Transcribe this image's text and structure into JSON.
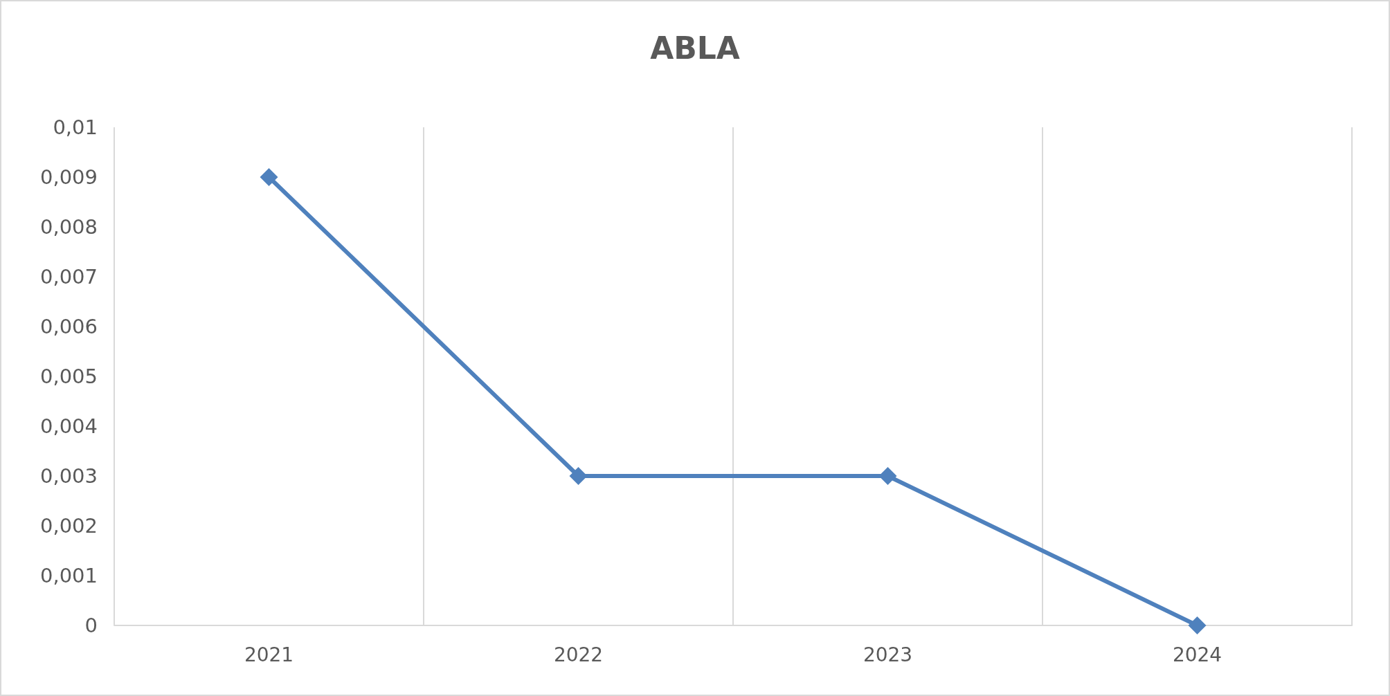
{
  "chart_data": {
    "type": "line",
    "title": "ABLA",
    "categories": [
      "2021",
      "2022",
      "2023",
      "2024"
    ],
    "series": [
      {
        "color": "#4f81bd",
        "values": [
          0.009,
          0.003,
          0.003,
          0
        ]
      }
    ],
    "ylim": [
      0,
      0.01
    ],
    "yticks": [
      {
        "value": 0,
        "label": "0"
      },
      {
        "value": 0.001,
        "label": "0,001"
      },
      {
        "value": 0.002,
        "label": "0,002"
      },
      {
        "value": 0.003,
        "label": "0,003"
      },
      {
        "value": 0.004,
        "label": "0,004"
      },
      {
        "value": 0.005,
        "label": "0,005"
      },
      {
        "value": 0.006,
        "label": "0,006"
      },
      {
        "value": 0.007,
        "label": "0,007"
      },
      {
        "value": 0.008,
        "label": "0,008"
      },
      {
        "value": 0.009,
        "label": "0,009"
      },
      {
        "value": 0.01,
        "label": "0,01"
      }
    ],
    "grid": "x",
    "marker": "diamond",
    "line_style": "solid"
  }
}
